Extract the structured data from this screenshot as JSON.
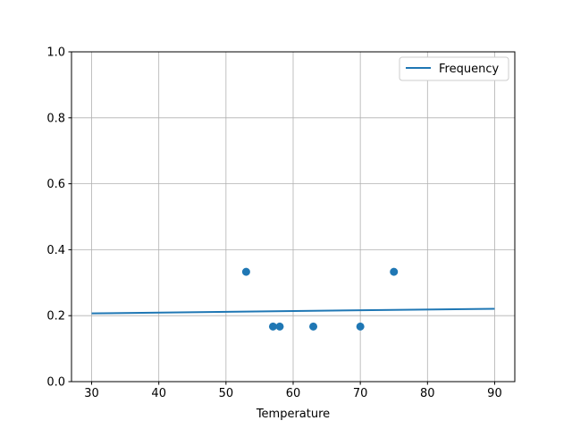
{
  "chart_data": {
    "type": "line+scatter",
    "title": "",
    "xlabel": "Temperature",
    "ylabel": "",
    "xlim": [
      27,
      93
    ],
    "ylim": [
      0,
      1
    ],
    "xticks": [
      "30",
      "40",
      "50",
      "60",
      "70",
      "80",
      "90"
    ],
    "yticks": [
      "0.0",
      "0.2",
      "0.4",
      "0.6",
      "0.8",
      "1.0"
    ],
    "grid": true,
    "legend": {
      "position": "top-right",
      "entries": [
        "Frequency"
      ]
    },
    "color": "#1f77b4",
    "line": {
      "name": "Frequency",
      "x": [
        30,
        90
      ],
      "y": [
        0.207,
        0.221
      ]
    },
    "scatter": {
      "x": [
        53,
        57,
        58,
        63,
        70,
        75
      ],
      "y": [
        0.333,
        0.167,
        0.167,
        0.167,
        0.167,
        0.333
      ]
    }
  }
}
